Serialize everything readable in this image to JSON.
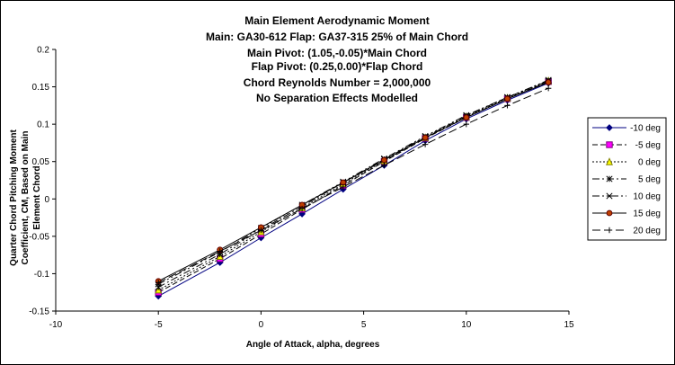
{
  "chart_data": {
    "type": "line",
    "title_lines": [
      "Main Element Aerodynamic Moment",
      "Main: GA30-612  Flap: GA37-315  25% of Main Chord",
      "Main Pivot: (1.05,-0.05)*Main Chord",
      "Flap Pivot: (0.25,0.00)*Flap Chord",
      "Chord Reynolds Number = 2,000,000",
      "No Separation Effects Modelled"
    ],
    "xlabel": "Angle of Attack, alpha, degrees",
    "ylabel_lines": [
      "Quarter Chord Pitching Moment",
      "Coefficient, CM, Based on Main",
      "Element Chord"
    ],
    "xlim": [
      -10,
      15
    ],
    "ylim": [
      -0.15,
      0.2
    ],
    "x_ticks": [
      -10,
      -5,
      0,
      5,
      10,
      15
    ],
    "x_tick_labels": [
      "-10",
      "-5",
      "0",
      "5",
      "10",
      "15"
    ],
    "y_ticks": [
      -0.15,
      -0.1,
      -0.05,
      0,
      0.05,
      0.1,
      0.15,
      0.2
    ],
    "y_tick_labels": [
      "-0.15",
      "-0.1",
      "-0.05",
      "0",
      "0.05",
      "0.1",
      "0.15",
      "0.2"
    ],
    "grid": false,
    "legend_position": "right",
    "x": [
      -5,
      -2,
      0,
      2,
      4,
      6,
      8,
      10,
      12,
      14
    ],
    "series": [
      {
        "name": "-10 deg",
        "values": [
          -0.13,
          -0.085,
          -0.052,
          -0.02,
          0.013,
          0.045,
          0.078,
          0.107,
          0.132,
          0.155
        ],
        "color": "#000080",
        "dash": "",
        "marker": "diamond"
      },
      {
        "name": "-5 deg",
        "values": [
          -0.125,
          -0.08,
          -0.047,
          -0.014,
          0.018,
          0.05,
          0.081,
          0.109,
          0.134,
          0.157
        ],
        "color": "#000000",
        "dash": "6,3",
        "marker": "square"
      },
      {
        "name": "0 deg",
        "values": [
          -0.122,
          -0.077,
          -0.044,
          -0.012,
          0.02,
          0.051,
          0.082,
          0.11,
          0.135,
          0.158
        ],
        "color": "#000000",
        "dash": "2,2",
        "marker": "triangle"
      },
      {
        "name": "5 deg",
        "values": [
          -0.118,
          -0.074,
          -0.041,
          -0.01,
          0.022,
          0.053,
          0.083,
          0.111,
          0.136,
          0.158
        ],
        "color": "#000000",
        "dash": "8,3,2,3",
        "marker": "star"
      },
      {
        "name": "10 deg",
        "values": [
          -0.114,
          -0.071,
          -0.039,
          -0.008,
          0.023,
          0.054,
          0.084,
          0.112,
          0.136,
          0.159
        ],
        "color": "#000000",
        "dash": "8,3,2,3,2,3",
        "marker": "asterisk"
      },
      {
        "name": "15 deg",
        "values": [
          -0.11,
          -0.068,
          -0.038,
          -0.008,
          0.022,
          0.052,
          0.082,
          0.109,
          0.134,
          0.156
        ],
        "color": "#000000",
        "dash": "",
        "marker": "circle"
      },
      {
        "name": "20 deg",
        "values": [
          -0.112,
          -0.07,
          -0.042,
          -0.013,
          0.016,
          0.045,
          0.073,
          0.1,
          0.125,
          0.148
        ],
        "color": "#000000",
        "dash": "9,4",
        "marker": "plus"
      }
    ]
  }
}
